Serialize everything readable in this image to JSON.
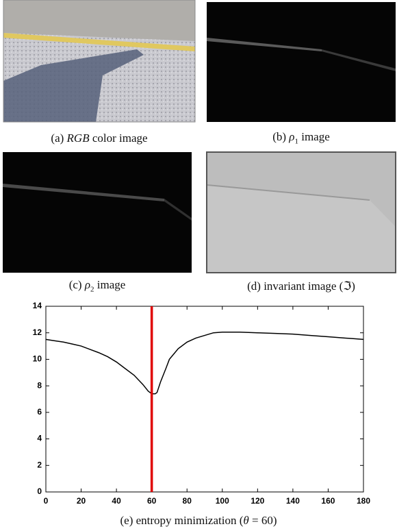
{
  "captions": {
    "a": {
      "prefix": "(a)",
      "symbol": "RGB",
      "suffix": "color image"
    },
    "b": {
      "prefix": "(b)",
      "symbol": "ρ",
      "subscript": "1",
      "suffix": "image"
    },
    "c": {
      "prefix": "(c)",
      "symbol": "ρ",
      "subscript": "2",
      "suffix": "image"
    },
    "d": {
      "prefix": "(d) invariant image (",
      "symbol": "ℑ",
      "suffix": ")"
    },
    "e": {
      "prefix": "(e) entropy minimization (",
      "symbol": "θ",
      "suffix": "= 60)"
    }
  },
  "chart_data": {
    "type": "line",
    "x": [
      0,
      5,
      10,
      15,
      20,
      25,
      30,
      35,
      40,
      45,
      50,
      55,
      58,
      60,
      62,
      63,
      65,
      68,
      70,
      75,
      80,
      85,
      90,
      95,
      100,
      110,
      120,
      130,
      140,
      150,
      160,
      170,
      180
    ],
    "series": [
      {
        "color": "#000000",
        "values": [
          11.5,
          11.4,
          11.3,
          11.15,
          11.0,
          10.75,
          10.5,
          10.2,
          9.8,
          9.3,
          8.8,
          8.1,
          7.6,
          7.4,
          7.4,
          7.5,
          8.3,
          9.3,
          10.0,
          10.8,
          11.3,
          11.6,
          11.8,
          12.0,
          12.05,
          12.05,
          12.0,
          11.95,
          11.9,
          11.8,
          11.7,
          11.6,
          11.5
        ]
      }
    ],
    "marker_x": 60,
    "marker_color": "#e00000",
    "xlim": [
      0,
      180
    ],
    "xticks": [
      0,
      20,
      40,
      60,
      80,
      100,
      120,
      140,
      160,
      180
    ],
    "ylim": [
      0,
      14
    ],
    "yticks": [
      0,
      2,
      4,
      6,
      8,
      10,
      12,
      14
    ]
  }
}
